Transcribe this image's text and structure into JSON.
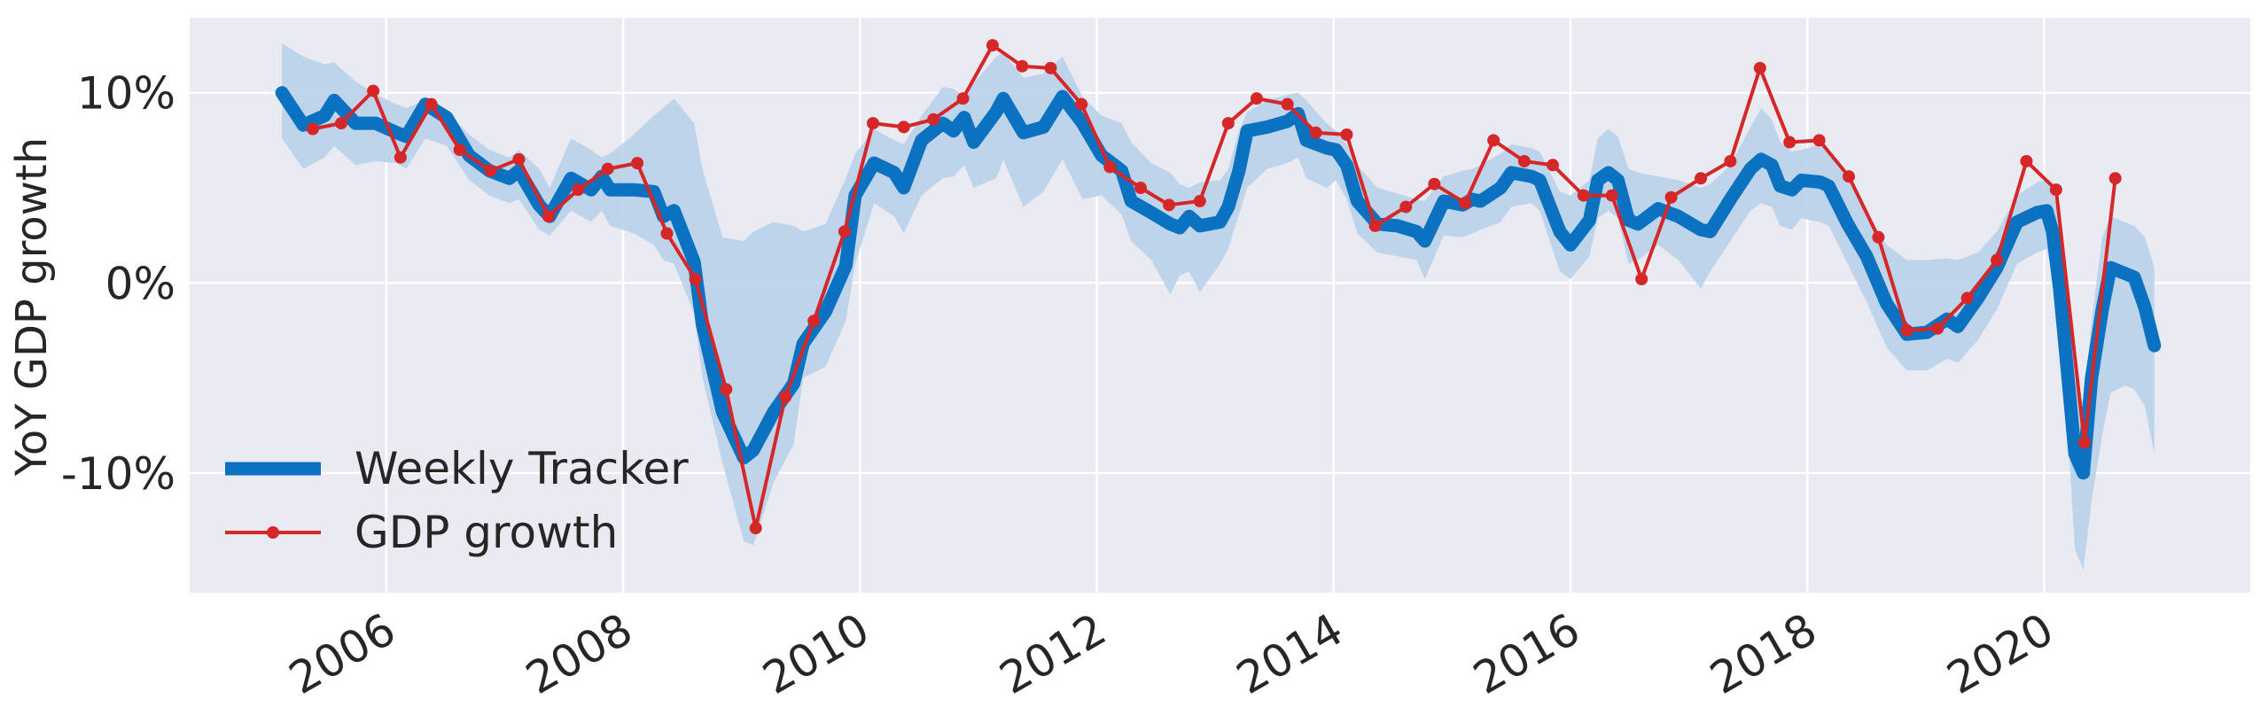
{
  "chart_data": {
    "type": "line",
    "ylabel": "YoY GDP growth",
    "xlim": [
      2004.34,
      2021.74
    ],
    "ylim": [
      -16.3,
      13.95
    ],
    "xticks": [
      2006,
      2008,
      2010,
      2012,
      2014,
      2016,
      2018,
      2020
    ],
    "yticks": [
      {
        "value": -10,
        "label": "-10%"
      },
      {
        "value": 0,
        "label": "0%"
      },
      {
        "value": 10,
        "label": "10%"
      }
    ],
    "grid": true,
    "legend": "lower left",
    "series": [
      {
        "name": "Weekly Tracker",
        "color": "#0a72c0",
        "band_color": "#b8d1ea",
        "x": [
          2005.12,
          2005.3,
          2005.48,
          2005.56,
          2005.74,
          2005.91,
          2006.09,
          2006.17,
          2006.33,
          2006.51,
          2006.7,
          2006.87,
          2007.04,
          2007.12,
          2007.29,
          2007.38,
          2007.56,
          2007.73,
          2007.82,
          2007.89,
          2008.09,
          2008.26,
          2008.34,
          2008.43,
          2008.6,
          2008.67,
          2008.84,
          2009.02,
          2009.1,
          2009.27,
          2009.44,
          2009.52,
          2009.71,
          2009.88,
          2009.96,
          2010.12,
          2010.29,
          2010.37,
          2010.52,
          2010.7,
          2010.79,
          2010.88,
          2010.96,
          2011.15,
          2011.21,
          2011.38,
          2011.55,
          2011.71,
          2011.88,
          2012.04,
          2012.21,
          2012.29,
          2012.46,
          2012.62,
          2012.7,
          2012.78,
          2012.87,
          2013.04,
          2013.11,
          2013.2,
          2013.27,
          2013.44,
          2013.61,
          2013.7,
          2013.77,
          2013.94,
          2014.02,
          2014.11,
          2014.2,
          2014.37,
          2014.54,
          2014.7,
          2014.77,
          2014.93,
          2015.09,
          2015.17,
          2015.24,
          2015.41,
          2015.5,
          2015.67,
          2015.74,
          2015.91,
          2016.0,
          2016.16,
          2016.23,
          2016.32,
          2016.4,
          2016.49,
          2016.57,
          2016.74,
          2016.91,
          2017.1,
          2017.18,
          2017.35,
          2017.52,
          2017.61,
          2017.7,
          2017.77,
          2017.87,
          2017.95,
          2018.11,
          2018.18,
          2018.34,
          2018.5,
          2018.67,
          2018.84,
          2019.01,
          2019.18,
          2019.27,
          2019.44,
          2019.6,
          2019.77,
          2019.94,
          2020.02,
          2020.07,
          2020.13,
          2020.2,
          2020.26,
          2020.33,
          2020.4,
          2020.49,
          2020.56,
          2020.68,
          2020.76,
          2020.85,
          2020.93
        ],
        "values": [
          10.0,
          8.3,
          8.8,
          9.6,
          8.4,
          8.4,
          7.9,
          7.7,
          9.4,
          8.7,
          6.7,
          5.9,
          5.5,
          5.9,
          4.1,
          3.5,
          5.5,
          4.9,
          5.6,
          4.9,
          4.9,
          4.8,
          3.5,
          3.8,
          1.1,
          -2.2,
          -6.8,
          -9.2,
          -8.8,
          -6.8,
          -5.3,
          -3.2,
          -1.5,
          0.9,
          4.6,
          6.3,
          5.8,
          5.0,
          7.5,
          8.4,
          8.0,
          8.7,
          7.4,
          9.0,
          9.7,
          7.9,
          8.2,
          9.8,
          8.4,
          6.7,
          5.9,
          4.3,
          3.7,
          3.1,
          2.9,
          3.5,
          3.0,
          3.2,
          4.0,
          5.9,
          8.0,
          8.2,
          8.5,
          8.9,
          7.5,
          7.1,
          7.0,
          6.2,
          4.3,
          3.1,
          3.0,
          2.7,
          2.2,
          4.3,
          4.1,
          4.4,
          4.3,
          5.0,
          5.8,
          5.6,
          5.4,
          2.7,
          2.0,
          3.3,
          5.4,
          5.8,
          5.4,
          3.3,
          3.1,
          3.9,
          3.5,
          2.8,
          2.7,
          4.4,
          6.0,
          6.5,
          6.2,
          5.1,
          4.9,
          5.4,
          5.3,
          5.1,
          3.1,
          1.4,
          -1.1,
          -2.7,
          -2.6,
          -1.9,
          -2.3,
          -0.8,
          0.8,
          3.2,
          3.7,
          3.8,
          2.7,
          -0.3,
          -4.9,
          -9.0,
          -10.0,
          -5.0,
          -1.4,
          0.8,
          0.5,
          0.3,
          -1.3,
          -3.3
        ],
        "upper": [
          12.6,
          11.9,
          11.5,
          11.6,
          10.6,
          9.9,
          9.4,
          9.2,
          9.6,
          9.0,
          7.8,
          7.0,
          6.6,
          7.0,
          6.0,
          5.0,
          7.6,
          7.0,
          6.6,
          6.8,
          7.8,
          8.8,
          9.2,
          9.7,
          8.4,
          6.0,
          2.4,
          2.2,
          2.7,
          3.2,
          3.0,
          2.7,
          3.1,
          5.5,
          6.8,
          8.1,
          7.5,
          7.3,
          8.8,
          10.3,
          10.2,
          9.8,
          10.5,
          11.9,
          12.1,
          10.8,
          11.0,
          11.9,
          9.8,
          8.8,
          8.4,
          7.4,
          6.3,
          5.8,
          5.2,
          5.0,
          5.3,
          5.4,
          6.0,
          8.0,
          9.0,
          9.6,
          9.9,
          10.0,
          9.6,
          8.4,
          8.0,
          7.3,
          6.2,
          5.0,
          4.7,
          4.4,
          4.3,
          5.6,
          5.9,
          6.0,
          6.2,
          6.8,
          7.3,
          7.1,
          6.9,
          4.8,
          4.6,
          5.4,
          7.6,
          8.1,
          7.7,
          6.0,
          5.8,
          5.6,
          5.4,
          5.0,
          5.2,
          6.2,
          8.2,
          9.2,
          8.6,
          7.4,
          6.9,
          7.0,
          7.3,
          7.0,
          5.6,
          3.5,
          2.0,
          1.2,
          1.2,
          1.3,
          1.2,
          1.6,
          2.7,
          4.6,
          5.3,
          5.4,
          5.0,
          3.2,
          -1.8,
          -5.2,
          -6.4,
          -2.0,
          2.4,
          3.5,
          3.2,
          3.0,
          2.4,
          0.8
        ],
        "lower": [
          7.6,
          6.0,
          6.6,
          7.2,
          6.2,
          6.4,
          6.3,
          6.0,
          7.6,
          7.2,
          5.4,
          4.6,
          4.2,
          4.4,
          2.8,
          2.5,
          3.8,
          3.2,
          3.8,
          3.0,
          2.6,
          2.0,
          1.2,
          1.0,
          -1.6,
          -5.0,
          -9.5,
          -13.6,
          -13.8,
          -10.5,
          -8.5,
          -5.0,
          -4.4,
          -2.0,
          1.0,
          4.2,
          3.5,
          2.6,
          4.6,
          5.5,
          5.6,
          6.2,
          5.0,
          5.5,
          6.5,
          4.0,
          4.8,
          6.5,
          4.4,
          4.6,
          3.6,
          2.2,
          1.2,
          -0.6,
          0.4,
          0.6,
          -0.5,
          1.0,
          1.8,
          3.6,
          5.0,
          6.0,
          6.3,
          6.6,
          5.5,
          5.0,
          5.4,
          4.4,
          2.6,
          1.6,
          1.4,
          1.2,
          0.2,
          2.5,
          2.4,
          2.6,
          2.8,
          3.2,
          4.0,
          4.2,
          3.8,
          0.6,
          0.2,
          1.4,
          3.4,
          3.8,
          3.4,
          1.0,
          1.2,
          2.0,
          1.2,
          -0.3,
          0.6,
          2.2,
          3.8,
          4.2,
          4.0,
          3.0,
          2.8,
          3.4,
          3.2,
          3.0,
          1.0,
          -1.0,
          -3.4,
          -4.6,
          -4.6,
          -4.0,
          -4.2,
          -3.0,
          -1.4,
          1.0,
          1.6,
          1.8,
          0.4,
          -3.0,
          -8.0,
          -14.0,
          -15.1,
          -11.5,
          -8.0,
          -5.8,
          -5.4,
          -5.6,
          -6.5,
          -9.0
        ]
      },
      {
        "name": "GDP growth",
        "color": "#d62728",
        "x": [
          2005.38,
          2005.62,
          2005.89,
          2006.12,
          2006.38,
          2006.62,
          2006.88,
          2007.12,
          2007.37,
          2007.62,
          2007.87,
          2008.12,
          2008.37,
          2008.61,
          2008.87,
          2009.12,
          2009.37,
          2009.61,
          2009.87,
          2010.11,
          2010.37,
          2010.62,
          2010.87,
          2011.12,
          2011.37,
          2011.61,
          2011.87,
          2012.11,
          2012.37,
          2012.61,
          2012.87,
          2013.11,
          2013.35,
          2013.61,
          2013.85,
          2014.11,
          2014.35,
          2014.61,
          2014.85,
          2015.11,
          2015.35,
          2015.61,
          2015.85,
          2016.11,
          2016.35,
          2016.6,
          2016.85,
          2017.1,
          2017.35,
          2017.6,
          2017.85,
          2018.1,
          2018.35,
          2018.6,
          2018.84,
          2019.1,
          2019.35,
          2019.6,
          2019.85,
          2020.1,
          2020.34,
          2020.6
        ],
        "values": [
          8.1,
          8.4,
          10.1,
          6.6,
          9.4,
          7.0,
          5.9,
          6.5,
          3.5,
          4.9,
          6.0,
          6.3,
          2.6,
          0.2,
          -5.6,
          -12.9,
          -6.0,
          -2.0,
          2.7,
          8.4,
          8.2,
          8.6,
          9.7,
          12.5,
          11.4,
          11.3,
          9.4,
          6.1,
          5.0,
          4.1,
          4.3,
          8.4,
          9.7,
          9.4,
          7.9,
          7.8,
          3.0,
          4.0,
          5.2,
          4.2,
          7.5,
          6.4,
          6.2,
          4.6,
          4.6,
          0.2,
          4.5,
          5.5,
          6.4,
          11.3,
          7.4,
          7.5,
          5.6,
          2.4,
          -2.5,
          -2.4,
          -0.8,
          1.2,
          6.4,
          4.9,
          -8.4,
          5.5
        ]
      }
    ]
  }
}
